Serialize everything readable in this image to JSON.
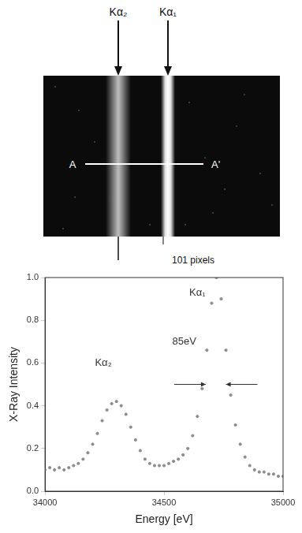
{
  "detector_image": {
    "labels": [
      "Kα₂",
      "Kα₁"
    ],
    "line_start": "A",
    "line_end": "A'",
    "scale_label": "101 pixels"
  },
  "chart_data": {
    "type": "scatter",
    "xlabel": "Energy [eV]",
    "ylabel": "X-Ray Intensity",
    "color": "#8c8c8c",
    "marker": "dot",
    "grid": false,
    "xlim": [
      34000,
      35000
    ],
    "xticks": [
      34000,
      34500,
      35000
    ],
    "ylim": [
      0,
      1
    ],
    "yticks": [
      {
        "value": 0,
        "label": "0.0"
      },
      0.2,
      0.4,
      0.6,
      0.8,
      {
        "value": 1,
        "label": "1.0"
      }
    ],
    "x": [
      34000,
      34020,
      34040,
      34060,
      34080,
      34100,
      34120,
      34140,
      34160,
      34180,
      34200,
      34220,
      34240,
      34260,
      34280,
      34300,
      34320,
      34340,
      34360,
      34380,
      34400,
      34420,
      34440,
      34460,
      34480,
      34500,
      34520,
      34540,
      34560,
      34580,
      34600,
      34620,
      34640,
      34660,
      34680,
      34700,
      34720,
      34740,
      34760,
      34780,
      34800,
      34820,
      34840,
      34860,
      34880,
      34900,
      34920,
      34940,
      34960,
      34980,
      35000
    ],
    "values": [
      0.1,
      0.11,
      0.1,
      0.11,
      0.1,
      0.11,
      0.12,
      0.13,
      0.15,
      0.18,
      0.22,
      0.27,
      0.33,
      0.38,
      0.41,
      0.42,
      0.4,
      0.36,
      0.3,
      0.24,
      0.19,
      0.15,
      0.13,
      0.12,
      0.12,
      0.12,
      0.13,
      0.14,
      0.15,
      0.17,
      0.2,
      0.26,
      0.35,
      0.48,
      0.66,
      0.88,
      1.0,
      0.9,
      0.66,
      0.45,
      0.31,
      0.22,
      0.16,
      0.12,
      0.1,
      0.09,
      0.09,
      0.08,
      0.08,
      0.07,
      0.07
    ],
    "annotations": [
      {
        "text": "Kα₂",
        "x": 34245,
        "y": 0.6
      },
      {
        "text": "Kα₁",
        "x": 34640,
        "y": 0.93
      },
      {
        "text": "85eV",
        "x": 34585,
        "y": 0.7,
        "span": [
          34675,
          34760
        ],
        "span_y": 0.5
      }
    ]
  }
}
